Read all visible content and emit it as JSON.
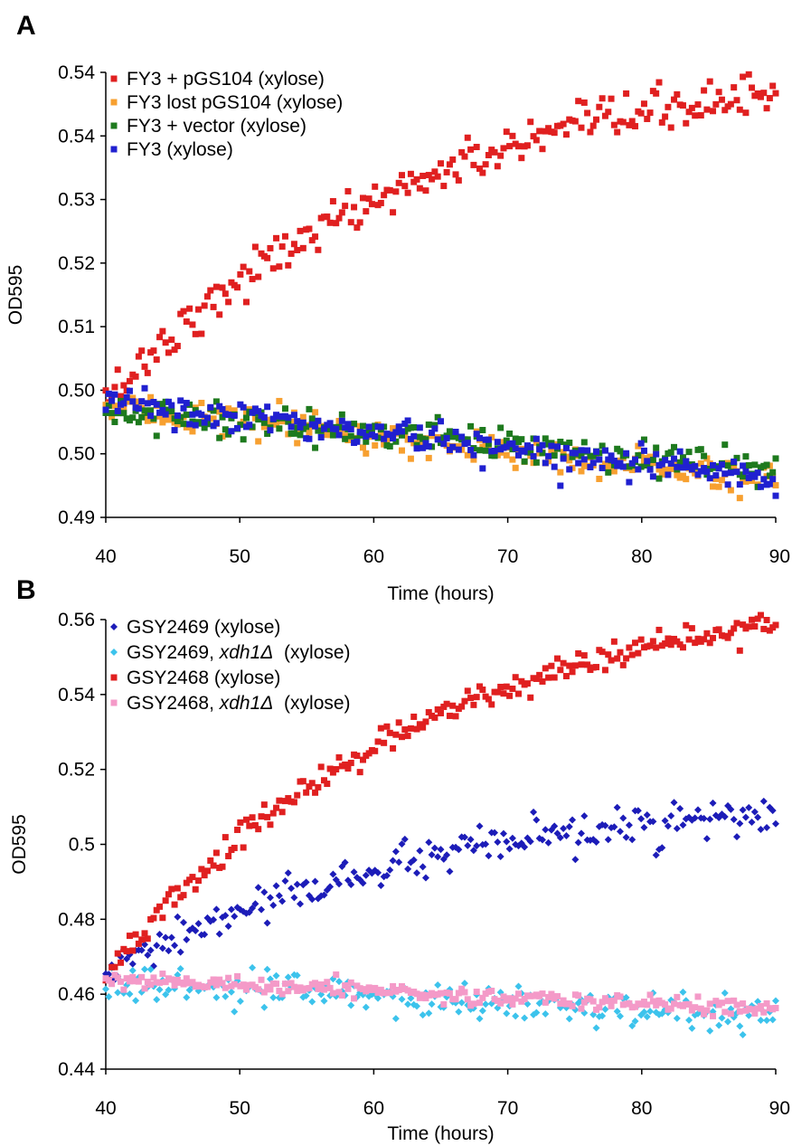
{
  "panels": [
    {
      "letter": "A",
      "chart_data": {
        "type": "scatter",
        "xlabel": "Time (hours)",
        "ylabel": "OD595",
        "xlim": [
          40,
          90
        ],
        "ylim": [
          0.49,
          0.54
        ],
        "x_ticks": [
          "40",
          "50",
          "60",
          "70",
          "80",
          "90"
        ],
        "y_ticks": [
          "0.49",
          "0.50",
          "0.50",
          "0.51",
          "0.52",
          "0.53",
          "0.54",
          "0.54"
        ],
        "legend_position": "top-left",
        "grid": false,
        "series": [
          {
            "name": "FY3 + pGS104 (xylose)",
            "color": "#e02020",
            "marker": "square",
            "start": 0.5031,
            "end": 0.5378,
            "shape": "concave",
            "noise": 0.0012
          },
          {
            "name": "FY3 lost pGS104 (xylose)",
            "color": "#f7a030",
            "marker": "square",
            "start": 0.5024,
            "end": 0.4942,
            "shape": "linear",
            "noise": 0.0009
          },
          {
            "name": "FY3 + vector (xylose)",
            "color": "#1e7a1e",
            "marker": "square",
            "start": 0.5024,
            "end": 0.4952,
            "shape": "linear",
            "noise": 0.0009
          },
          {
            "name": "FY3 (xylose)",
            "color": "#2020d0",
            "marker": "square",
            "start": 0.5028,
            "end": 0.4945,
            "shape": "linear",
            "noise": 0.0009
          }
        ]
      }
    },
    {
      "letter": "B",
      "chart_data": {
        "type": "scatter",
        "xlabel": "Time (hours)",
        "ylabel": "OD595",
        "xlim": [
          40,
          90
        ],
        "ylim": [
          0.44,
          0.56
        ],
        "x_ticks": [
          "40",
          "50",
          "60",
          "70",
          "80",
          "90"
        ],
        "y_ticks": [
          "0.44",
          "0.46",
          "0.48",
          "0.5",
          "0.52",
          "0.54",
          "0.56"
        ],
        "legend_position": "top-left",
        "grid": false,
        "series": [
          {
            "name": "GSY2469 (xylose)",
            "name_parts": [
              "GSY2469 (xylose)"
            ],
            "color": "#1c1cb8",
            "marker": "diamond",
            "start": 0.465,
            "end": 0.508,
            "shape": "concave",
            "noise": 0.0025
          },
          {
            "name": "GSY2469, xdh1Δ (xylose)",
            "name_parts": [
              "GSY2469, ",
              "xdh1Δ",
              "  (xylose)"
            ],
            "color": "#3cc3ec",
            "marker": "diamond",
            "start": 0.463,
            "end": 0.454,
            "shape": "linear",
            "noise": 0.0022
          },
          {
            "name": "GSY2468 (xylose)",
            "name_parts": [
              "GSY2468 (xylose)"
            ],
            "color": "#e02020",
            "marker": "square",
            "start": 0.465,
            "end": 0.559,
            "shape": "concave",
            "noise": 0.0018
          },
          {
            "name": "GSY2468, xdh1Δ (xylose)",
            "name_parts": [
              "GSY2468, ",
              "xdh1Δ",
              "  (xylose)"
            ],
            "color": "#f49ac8",
            "marker": "square",
            "start": 0.464,
            "end": 0.456,
            "shape": "linear",
            "noise": 0.0012
          }
        ]
      }
    }
  ]
}
